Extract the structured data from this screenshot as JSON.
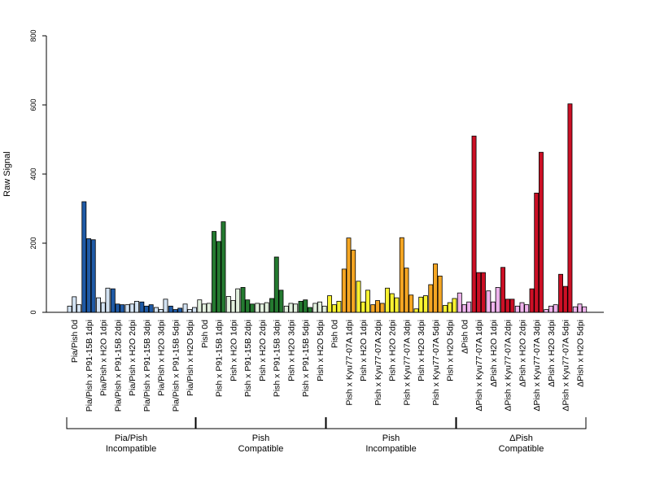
{
  "chart_data": {
    "type": "bar",
    "ylabel": "Raw Signal",
    "ylim": [
      0,
      800
    ],
    "yticks": [
      "0",
      "200",
      "400",
      "600",
      "800"
    ],
    "grid": false,
    "legend": "none",
    "groups": [
      {
        "name_line1": "Pia/Pish",
        "name_line2": "Incompatible",
        "color_fill": "#1f5aa6",
        "color_light": "#d3e3f3",
        "categories": [
          "Pia/Pish 0d",
          "Pia/Pish x P91-15B 1dpi",
          "Pia/Pish x H2O 1dpi",
          "Pia/Pish x P91-15B 2dpi",
          "Pia/Pish x H2O 2dpi",
          "Pia/Pish x P91-15B 3dpi",
          "Pia/Pish x H2O 3dpi",
          "Pia/Pish x P91-15B 5dpi",
          "Pia/Pish x H2O 5dpi"
        ],
        "values": [
          [
            18,
            45,
            22
          ],
          [
            320,
            213,
            210
          ],
          [
            42,
            28,
            70
          ],
          [
            68,
            24,
            22
          ],
          [
            22,
            24,
            32
          ],
          [
            30,
            18,
            22
          ],
          [
            14,
            8,
            38
          ],
          [
            18,
            8,
            12
          ],
          [
            24,
            8,
            14
          ]
        ],
        "fill": [
          false,
          true,
          false,
          true,
          false,
          true,
          false,
          true,
          false
        ]
      },
      {
        "name_line1": "Pish",
        "name_line2": "Compatible",
        "color_fill": "#247a30",
        "color_light": "#e2f0de",
        "categories": [
          "Pish 0d",
          "Pish x P91-15B 1dpi",
          "Pish x H2O 1dpi",
          "Pish x P91-15B 2dpi",
          "Pish x H2O 2dpi",
          "Pish x P91-15B 3dpi",
          "Pish x H2O 3dpi",
          "Pish x P91-15B 5dpi",
          "Pish x H2O 5dpi"
        ],
        "values": [
          [
            36,
            24,
            26
          ],
          [
            234,
            205,
            262
          ],
          [
            46,
            34,
            68
          ],
          [
            72,
            36,
            24
          ],
          [
            26,
            24,
            28
          ],
          [
            40,
            160,
            64
          ],
          [
            18,
            26,
            24
          ],
          [
            32,
            36,
            14
          ],
          [
            26,
            30,
            18
          ]
        ],
        "fill": [
          false,
          true,
          false,
          true,
          false,
          true,
          false,
          true,
          false
        ]
      },
      {
        "name_line1": "Pish",
        "name_line2": "Incompatible",
        "color_fill": "#f5a623",
        "color_light": "#f8f230",
        "categories": [
          "Pish 0d",
          "Pish x Kyu77-07A 1dpi",
          "Pish x H2O 1dpi",
          "Pish x Kyu77-07A 2dpi",
          "Pish x H2O 2dpi",
          "Pish x Kyu77-07A 3dpi",
          "Pish x H2O 3dpi",
          "Pish x Kyu77-07A 5dpi",
          "Pish x H2O 5dpi"
        ],
        "values": [
          [
            48,
            22,
            32
          ],
          [
            125,
            215,
            180
          ],
          [
            90,
            30,
            64
          ],
          [
            22,
            34,
            26
          ],
          [
            70,
            54,
            42
          ],
          [
            216,
            128,
            50
          ],
          [
            10,
            44,
            48
          ],
          [
            80,
            140,
            105
          ],
          [
            20,
            28,
            40
          ]
        ],
        "fill": [
          false,
          true,
          false,
          true,
          false,
          true,
          false,
          true,
          false
        ]
      },
      {
        "name_line1": "ΔPish",
        "name_line2": "Compatible",
        "color_fill": "#cc0f25",
        "color_light": "#f0b4ee",
        "categories": [
          "ΔPish 0d",
          "ΔPish x Kyu77-07A 1dpi",
          "ΔPish x H2O 1dpi",
          "ΔPish x Kyu77-07A 2dpi",
          "ΔPish x H2O 2dpi",
          "ΔPish x Kyu77-07A 3dpi",
          "ΔPish x H2O 3dpi",
          "ΔPish x Kyu77-07A 5dpi",
          "ΔPish x H2O 5dpi"
        ],
        "values": [
          [
            56,
            22,
            30
          ],
          [
            510,
            115,
            115
          ],
          [
            62,
            30,
            72
          ],
          [
            130,
            38,
            38
          ],
          [
            18,
            28,
            22
          ],
          [
            68,
            345,
            463
          ],
          [
            8,
            18,
            22
          ],
          [
            110,
            75,
            603
          ],
          [
            16,
            24,
            16
          ]
        ],
        "fill": [
          false,
          true,
          false,
          true,
          false,
          true,
          false,
          true,
          false
        ]
      }
    ]
  }
}
